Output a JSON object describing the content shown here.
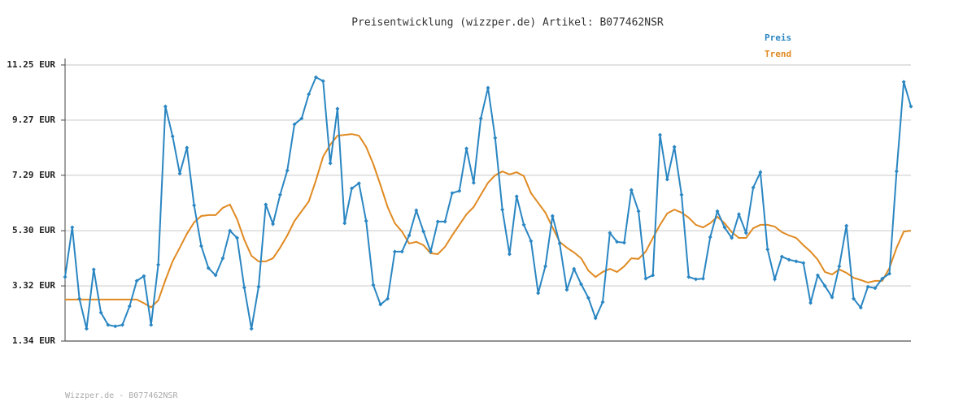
{
  "chart_data": {
    "type": "line",
    "title": "Preisentwicklung (wizzper.de) Artikel: B077462NSR",
    "footer": "Wizzper.de - B077462NSR",
    "ylim": [
      1.34,
      11.25
    ],
    "yticks": [
      {
        "value": 1.34,
        "label": "1.34 EUR"
      },
      {
        "value": 3.32,
        "label": "3.32 EUR"
      },
      {
        "value": 5.3,
        "label": "5.30 EUR"
      },
      {
        "value": 7.29,
        "label": "7.29 EUR"
      },
      {
        "value": 9.27,
        "label": "9.27 EUR"
      },
      {
        "value": 11.25,
        "label": "11.25 EUR"
      }
    ],
    "grid": true,
    "legend": "top-right",
    "series": [
      {
        "name": "Preis",
        "color": "#2a86c2",
        "markers": true,
        "values": [
          3.64,
          5.42,
          2.86,
          1.78,
          3.91,
          2.36,
          1.92,
          1.87,
          1.92,
          2.59,
          3.5,
          3.67,
          1.92,
          4.08,
          9.76,
          8.69,
          7.35,
          8.28,
          6.21,
          4.75,
          3.96,
          3.7,
          4.31,
          5.3,
          5.04,
          3.26,
          1.78,
          3.29,
          6.24,
          5.54,
          6.59,
          7.46,
          9.12,
          9.33,
          10.2,
          10.81,
          10.67,
          7.72,
          9.68,
          5.57,
          6.82,
          7.0,
          5.65,
          3.35,
          2.65,
          2.86,
          4.55,
          4.55,
          5.13,
          6.03,
          5.27,
          4.55,
          5.63,
          5.63,
          6.65,
          6.73,
          8.25,
          7.02,
          9.33,
          10.43,
          8.63,
          6.06,
          4.46,
          6.53,
          5.51,
          4.93,
          3.06,
          4.02,
          5.83,
          4.84,
          3.18,
          3.93,
          3.38,
          2.89,
          2.16,
          2.74,
          5.22,
          4.9,
          4.87,
          6.76,
          6.0,
          3.58,
          3.7,
          8.74,
          7.14,
          8.31,
          6.59,
          3.64,
          3.56,
          3.58,
          5.07,
          6.0,
          5.42,
          5.04,
          5.89,
          5.22,
          6.85,
          7.4,
          4.63,
          3.56,
          4.37,
          4.26,
          4.2,
          4.14,
          2.71,
          3.7,
          3.32,
          2.91,
          4.02,
          5.48,
          2.86,
          2.54,
          3.29,
          3.24,
          3.58,
          3.76,
          7.43,
          10.64,
          9.76
        ]
      },
      {
        "name": "Trend",
        "color": "#e08a22",
        "markers": false,
        "values": [
          2.83,
          2.83,
          2.83,
          2.83,
          2.83,
          2.83,
          2.83,
          2.83,
          2.83,
          2.83,
          2.83,
          2.7,
          2.55,
          2.8,
          3.53,
          4.2,
          4.69,
          5.19,
          5.6,
          5.83,
          5.86,
          5.86,
          6.12,
          6.24,
          5.71,
          4.98,
          4.4,
          4.2,
          4.2,
          4.31,
          4.69,
          5.13,
          5.65,
          6.0,
          6.35,
          7.11,
          7.96,
          8.39,
          8.71,
          8.74,
          8.77,
          8.71,
          8.31,
          7.69,
          6.94,
          6.15,
          5.57,
          5.27,
          4.84,
          4.9,
          4.78,
          4.49,
          4.46,
          4.72,
          5.13,
          5.51,
          5.89,
          6.15,
          6.59,
          7.02,
          7.29,
          7.43,
          7.32,
          7.4,
          7.26,
          6.65,
          6.3,
          5.95,
          5.42,
          4.9,
          4.69,
          4.52,
          4.31,
          3.87,
          3.64,
          3.82,
          3.93,
          3.82,
          4.02,
          4.31,
          4.29,
          4.55,
          5.04,
          5.51,
          5.92,
          6.06,
          5.95,
          5.77,
          5.51,
          5.42,
          5.57,
          5.8,
          5.57,
          5.25,
          5.04,
          5.04,
          5.39,
          5.51,
          5.51,
          5.45,
          5.25,
          5.13,
          5.04,
          4.78,
          4.55,
          4.26,
          3.82,
          3.73,
          3.91,
          3.79,
          3.61,
          3.53,
          3.44,
          3.5,
          3.5,
          3.96,
          4.69,
          5.27,
          5.3
        ]
      }
    ]
  }
}
